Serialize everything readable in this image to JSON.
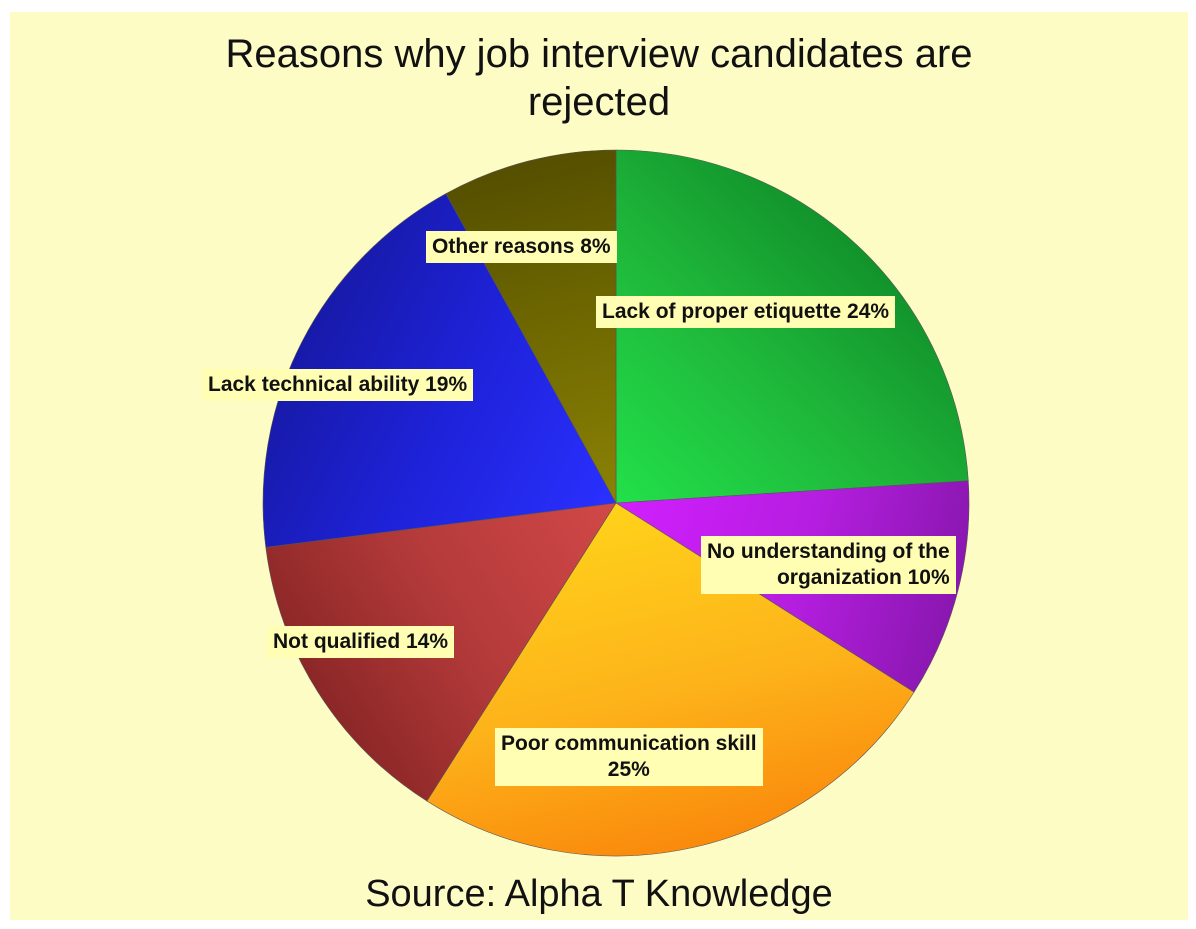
{
  "chart_data": {
    "type": "pie",
    "title": "Reasons why job interview candidates are rejected",
    "title_lines": [
      "Reasons why job interview candidates are",
      "rejected"
    ],
    "source": "Source: Alpha T Knowledge",
    "start_angle_deg": 0,
    "direction": "clockwise",
    "slices": [
      {
        "label": "Lack of proper etiquette 24%",
        "label_lines": [
          "Lack of proper etiquette 24%"
        ],
        "value": 24,
        "color": "#1fb83b",
        "color_light": "#22e04a",
        "color_dark": "#12932b"
      },
      {
        "label": "No understanding of the organization 10%",
        "label_lines": [
          "No understanding of the",
          "organization 10%"
        ],
        "value": 10,
        "color": "#b51ee0",
        "color_light": "#d21fff",
        "color_dark": "#8a17b0"
      },
      {
        "label": "Poor communication skill 25%",
        "label_lines": [
          "Poor communication skill",
          "25%"
        ],
        "value": 25,
        "color": "#fdb31a",
        "color_light": "#ffd21a",
        "color_dark": "#fa8a0c"
      },
      {
        "label": "Not qualified 14%",
        "label_lines": [
          "Not qualified 14%"
        ],
        "value": 14,
        "color": "#b43a3a",
        "color_light": "#d24848",
        "color_dark": "#8c2727"
      },
      {
        "label": "Lack technical ability 19%",
        "label_lines": [
          "Lack technical ability 19%"
        ],
        "value": 19,
        "color": "#1e22d8",
        "color_light": "#2a30ff",
        "color_dark": "#171aa8"
      },
      {
        "label": "Other reasons 8%",
        "label_lines": [
          "Other reasons 8%"
        ],
        "value": 8,
        "color": "#6e6700",
        "color_light": "#8a8205",
        "color_dark": "#554f00"
      }
    ]
  }
}
